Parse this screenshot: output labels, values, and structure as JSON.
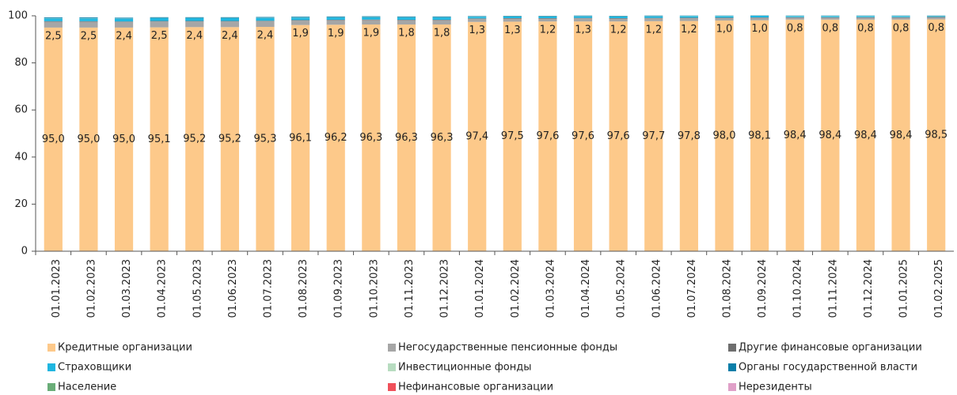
{
  "chart_data": {
    "type": "stacked_bar",
    "categories": [
      "01.01.2023",
      "01.02.2023",
      "01.03.2023",
      "01.04.2023",
      "01.05.2023",
      "01.06.2023",
      "01.07.2023",
      "01.08.2023",
      "01.09.2023",
      "01.10.2023",
      "01.11.2023",
      "01.12.2023",
      "01.01.2024",
      "01.02.2024",
      "01.03.2024",
      "01.04.2024",
      "01.05.2024",
      "01.06.2024",
      "01.07.2024",
      "01.08.2024",
      "01.09.2024",
      "01.10.2024",
      "01.11.2024",
      "01.12.2024",
      "01.01.2025",
      "01.02.2025"
    ],
    "ylim": [
      0,
      100
    ],
    "yticks": [
      0,
      20,
      40,
      60,
      80,
      100
    ],
    "grid": false,
    "series": [
      {
        "name": "Кредитные организации",
        "color": "#fdc98a",
        "values": [
          95.0,
          95.0,
          95.0,
          95.1,
          95.2,
          95.2,
          95.3,
          96.1,
          96.2,
          96.3,
          96.3,
          96.3,
          97.4,
          97.5,
          97.6,
          97.6,
          97.6,
          97.7,
          97.8,
          98.0,
          98.1,
          98.4,
          98.4,
          98.4,
          98.4,
          98.5
        ],
        "value_labels": [
          "95,0",
          "95,0",
          "95,0",
          "95,1",
          "95,2",
          "95,2",
          "95,3",
          "96,1",
          "96,2",
          "96,3",
          "96,3",
          "96,3",
          "97,4",
          "97,5",
          "97,6",
          "97,6",
          "97,6",
          "97,7",
          "97,8",
          "98,0",
          "98,1",
          "98,4",
          "98,4",
          "98,4",
          "98,4",
          "98,5"
        ]
      },
      {
        "name": "Негосударственные пенсионные фонды",
        "color": "#a6a6a6",
        "values": [
          2.5,
          2.5,
          2.4,
          2.5,
          2.4,
          2.4,
          2.4,
          1.9,
          1.9,
          1.9,
          1.8,
          1.8,
          1.3,
          1.3,
          1.2,
          1.3,
          1.2,
          1.2,
          1.2,
          1.0,
          1.0,
          0.8,
          0.8,
          0.8,
          0.8,
          0.8
        ],
        "value_labels": [
          "2,5",
          "2,5",
          "2,4",
          "2,5",
          "2,4",
          "2,4",
          "2,4",
          "1,9",
          "1,9",
          "1,9",
          "1,8",
          "1,8",
          "1,3",
          "1,3",
          "1,2",
          "1,3",
          "1,2",
          "1,2",
          "1,2",
          "1,0",
          "1,0",
          "0,8",
          "0,8",
          "0,8",
          "0,8",
          "0,8"
        ]
      },
      {
        "name": "Другие финансовые организации",
        "color": "#6e6e6e",
        "values": [
          0.2,
          0.2,
          0.2,
          0.2,
          0.2,
          0.2,
          0.2,
          0.2,
          0.2,
          0.2,
          0.2,
          0.2,
          0.2,
          0.2,
          0.2,
          0.2,
          0.2,
          0.2,
          0.2,
          0.2,
          0.2,
          0.2,
          0.2,
          0.2,
          0.2,
          0.2
        ]
      },
      {
        "name": "Страховщики",
        "color": "#1fb6e0",
        "values": [
          1.2,
          1.2,
          1.2,
          1.2,
          1.2,
          1.2,
          1.2,
          1.0,
          1.0,
          1.0,
          1.0,
          1.0,
          0.7,
          0.7,
          0.7,
          0.7,
          0.7,
          0.7,
          0.7,
          0.7,
          0.7,
          0.5,
          0.5,
          0.5,
          0.5,
          0.4
        ]
      },
      {
        "name": "Инвестиционные фонды",
        "color": "#b7dcc0",
        "values": [
          0.1,
          0.1,
          0.1,
          0.1,
          0.1,
          0.1,
          0.1,
          0.1,
          0.1,
          0.1,
          0.1,
          0.1,
          0.1,
          0.1,
          0.1,
          0.1,
          0.1,
          0.1,
          0.1,
          0.1,
          0.1,
          0.1,
          0.1,
          0.1,
          0.1,
          0.1
        ]
      },
      {
        "name": "Органы государственной власти",
        "color": "#0a7ea8",
        "values": [
          0.3,
          0.3,
          0.3,
          0.3,
          0.3,
          0.3,
          0.3,
          0.3,
          0.3,
          0.3,
          0.3,
          0.3,
          0.2,
          0.2,
          0.2,
          0.2,
          0.2,
          0.2,
          0.1,
          0.1,
          0.1,
          0.1,
          0.1,
          0.1,
          0.1,
          0.1
        ]
      },
      {
        "name": "Население",
        "color": "#6aad78",
        "values": [
          0,
          0,
          0,
          0,
          0,
          0,
          0,
          0,
          0,
          0,
          0,
          0,
          0,
          0,
          0,
          0,
          0,
          0,
          0,
          0,
          0,
          0,
          0,
          0,
          0,
          0
        ]
      },
      {
        "name": "Нефинансовые организации",
        "color": "#f0505a",
        "values": [
          0,
          0,
          0,
          0,
          0,
          0,
          0,
          0,
          0,
          0,
          0,
          0,
          0,
          0,
          0,
          0,
          0,
          0,
          0,
          0,
          0,
          0,
          0,
          0,
          0,
          0
        ]
      },
      {
        "name": "Нерезиденты",
        "color": "#e0a0c8",
        "values": [
          0,
          0,
          0,
          0,
          0,
          0,
          0,
          0,
          0,
          0,
          0,
          0,
          0,
          0,
          0,
          0,
          0,
          0,
          0,
          0,
          0,
          0,
          0,
          0,
          0,
          0
        ]
      }
    ]
  }
}
